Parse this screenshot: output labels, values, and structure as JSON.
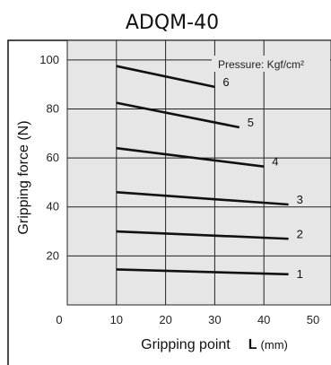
{
  "chart_data": {
    "type": "line",
    "title": "ADQM-40",
    "xlabel": "Gripping point",
    "xlabel_symbol": "L",
    "xlabel_unit": "(mm)",
    "ylabel": "Gripping force (N)",
    "legend_title": "Pressure: Kgf/cm²",
    "xlim": [
      0,
      50
    ],
    "ylim": [
      0,
      108
    ],
    "x_ticks": [
      "0",
      "10",
      "20",
      "30",
      "40",
      "50"
    ],
    "y_ticks": [
      "20",
      "40",
      "60",
      "80",
      "100"
    ],
    "grid": true,
    "background": "#e6e6e6",
    "line_color": "#111111",
    "series": [
      {
        "name": "1",
        "x": [
          10,
          45
        ],
        "y": [
          14.5,
          12.5
        ]
      },
      {
        "name": "2",
        "x": [
          10,
          45
        ],
        "y": [
          30,
          27
        ]
      },
      {
        "name": "3",
        "x": [
          10,
          45
        ],
        "y": [
          46,
          41
        ]
      },
      {
        "name": "4",
        "x": [
          10,
          40
        ],
        "y": [
          64,
          56.5
        ]
      },
      {
        "name": "5",
        "x": [
          10,
          35
        ],
        "y": [
          82.5,
          72.5
        ]
      },
      {
        "name": "6",
        "x": [
          10,
          30
        ],
        "y": [
          97.5,
          89
        ]
      }
    ]
  }
}
